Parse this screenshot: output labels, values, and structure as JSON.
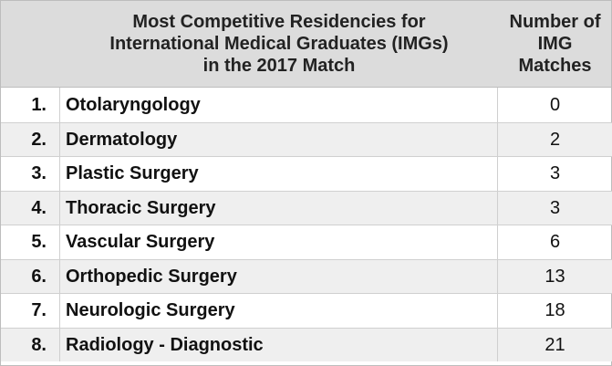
{
  "chart_data": {
    "type": "table",
    "title": "Most Competitive Residencies for International Medical Graduates (IMGs) in the 2017 Match",
    "columns": [
      "",
      "Most Competitive Residencies for International Medical Graduates (IMGs) in the 2017 Match",
      "Number of IMG Matches"
    ],
    "header_lines": {
      "title_line_1": "Most Competitive Residencies for",
      "title_line_2": "International Medical Graduates (IMGs)",
      "title_line_3": "in the 2017 Match",
      "count_line_1": "Number of",
      "count_line_2": "IMG",
      "count_line_3": "Matches"
    },
    "rows": [
      {
        "rank": "1.",
        "specialty": "Otolaryngology",
        "matches": "0"
      },
      {
        "rank": "2.",
        "specialty": "Dermatology",
        "matches": "2"
      },
      {
        "rank": "3.",
        "specialty": "Plastic Surgery",
        "matches": "3"
      },
      {
        "rank": "4.",
        "specialty": "Thoracic Surgery",
        "matches": "3"
      },
      {
        "rank": "5.",
        "specialty": "Vascular Surgery",
        "matches": "6"
      },
      {
        "rank": "6.",
        "specialty": "Orthopedic Surgery",
        "matches": "13"
      },
      {
        "rank": "7.",
        "specialty": "Neurologic Surgery",
        "matches": "18"
      },
      {
        "rank": "8.",
        "specialty": "Radiology - Diagnostic",
        "matches": "21"
      }
    ]
  },
  "colors": {
    "header_background": "#dcdcdc",
    "alternate_row_background": "#efefef",
    "border": "#bdbdbd"
  }
}
